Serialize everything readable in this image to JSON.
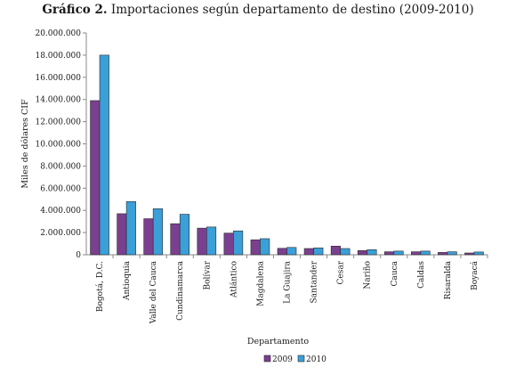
{
  "chart_data": {
    "type": "bar",
    "title_prefix": "Gráfico 2.",
    "title": "Importaciones según departamento de destino (2009-2010)",
    "xlabel": "Departamento",
    "ylabel": "Miles de dólares CIF",
    "ylim": [
      0,
      20000000
    ],
    "yticks": [
      "0",
      "2.000.000",
      "4.000.000",
      "6.000.000",
      "8.000.000",
      "10.000.000",
      "12.000.000",
      "14.000.000",
      "16.000.000",
      "18.000.000",
      "20.000.000"
    ],
    "grid": false,
    "legend_position": "bottom",
    "categories": [
      "Bogotá, D.C.",
      "Antioquia",
      "Valle del Cauca",
      "Cundinamarca",
      "Bolívar",
      "Atlántico",
      "Magdalena",
      "La Guajira",
      "Santander",
      "Cesar",
      "Nariño",
      "Cauca",
      "Caldas",
      "Risaralda",
      "Boyacá"
    ],
    "series": [
      {
        "name": "2009",
        "color": "#7b3f8f",
        "values": [
          13900000,
          3700000,
          3250000,
          2800000,
          2400000,
          1950000,
          1350000,
          580000,
          560000,
          780000,
          380000,
          270000,
          270000,
          210000,
          160000
        ]
      },
      {
        "name": "2010",
        "color": "#3b9fd8",
        "values": [
          18000000,
          4800000,
          4150000,
          3650000,
          2500000,
          2150000,
          1450000,
          660000,
          620000,
          560000,
          460000,
          330000,
          330000,
          270000,
          250000
        ]
      }
    ]
  }
}
